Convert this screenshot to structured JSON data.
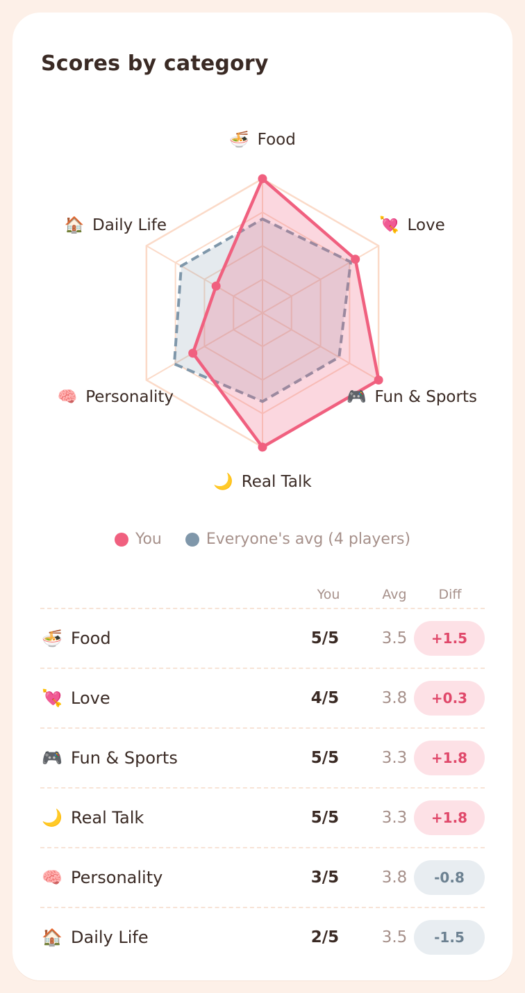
{
  "title": "Scores by category",
  "colors": {
    "you": "#f0607f",
    "avg": "#7f97aa",
    "grid": "#fbdac8",
    "positive": "#e0486a",
    "negative": "#6c8191"
  },
  "legend": {
    "you": "You",
    "avg": "Everyone's avg (4 players)"
  },
  "table": {
    "headers": {
      "you": "You",
      "avg": "Avg",
      "diff": "Diff"
    },
    "rows": [
      {
        "emoji": "🍜",
        "icon": "noodle-bowl-icon",
        "category": "Food",
        "you": "5/5",
        "avg": "3.5",
        "diff": "+1.5",
        "sign": "pos"
      },
      {
        "emoji": "💘",
        "icon": "heart-arrow-icon",
        "category": "Love",
        "you": "4/5",
        "avg": "3.8",
        "diff": "+0.3",
        "sign": "pos"
      },
      {
        "emoji": "🎮",
        "icon": "game-controller-icon",
        "category": "Fun & Sports",
        "you": "5/5",
        "avg": "3.3",
        "diff": "+1.8",
        "sign": "pos"
      },
      {
        "emoji": "🌙",
        "icon": "crescent-moon-icon",
        "category": "Real Talk",
        "you": "5/5",
        "avg": "3.3",
        "diff": "+1.8",
        "sign": "pos"
      },
      {
        "emoji": "🧠",
        "icon": "brain-icon",
        "category": "Personality",
        "you": "3/5",
        "avg": "3.8",
        "diff": "-0.8",
        "sign": "neg"
      },
      {
        "emoji": "🏠",
        "icon": "house-icon",
        "category": "Daily Life",
        "you": "2/5",
        "avg": "3.5",
        "diff": "-1.5",
        "sign": "neg"
      }
    ]
  },
  "chart_data": {
    "type": "radar",
    "categories": [
      "Food",
      "Love",
      "Fun & Sports",
      "Real Talk",
      "Personality",
      "Daily Life"
    ],
    "category_emoji": [
      "🍜",
      "💘",
      "🎮",
      "🌙",
      "🧠",
      "🏠"
    ],
    "series": [
      {
        "name": "You",
        "values": [
          5,
          4,
          5,
          5,
          3,
          2
        ],
        "style": "solid"
      },
      {
        "name": "Everyone's avg (4 players)",
        "values": [
          3.5,
          3.8,
          3.3,
          3.3,
          3.8,
          3.5
        ],
        "style": "dashed"
      }
    ],
    "range": [
      0,
      5
    ],
    "grid_levels": 4,
    "grid": true,
    "legend_position": "bottom"
  }
}
